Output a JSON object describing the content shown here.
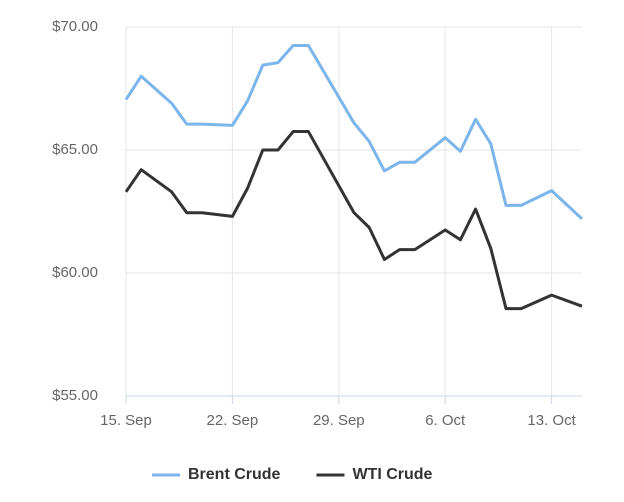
{
  "chart_data": {
    "type": "line",
    "x": [
      0,
      1,
      3,
      4,
      5,
      7,
      8,
      9,
      10,
      11,
      12,
      15,
      16,
      17,
      18,
      19,
      21,
      22,
      23,
      24,
      25,
      26,
      28,
      30
    ],
    "series": [
      {
        "name": "Brent Crude",
        "color": "#7cb5ec",
        "values": [
          67.05,
          68.0,
          66.9,
          66.05,
          66.05,
          66.0,
          67.0,
          68.45,
          68.55,
          69.25,
          69.25,
          66.1,
          65.35,
          64.15,
          64.5,
          64.5,
          65.5,
          64.95,
          66.25,
          65.25,
          62.75,
          62.75,
          63.35,
          62.2
        ]
      },
      {
        "name": "WTI Crude",
        "color": "#333333",
        "values": [
          63.3,
          64.2,
          63.3,
          62.45,
          62.45,
          62.3,
          63.45,
          65.0,
          65.0,
          65.75,
          65.75,
          62.45,
          61.85,
          60.55,
          60.95,
          60.95,
          61.75,
          61.35,
          62.6,
          61.0,
          58.55,
          58.55,
          59.1,
          58.65
        ]
      }
    ],
    "xlim": [
      0,
      30
    ],
    "xticks": [
      {
        "value": 0,
        "label": "15. Sep"
      },
      {
        "value": 7,
        "label": "22. Sep"
      },
      {
        "value": 14,
        "label": "29. Sep"
      },
      {
        "value": 21,
        "label": "6. Oct"
      },
      {
        "value": 28,
        "label": "13. Oct"
      }
    ],
    "ylim": [
      55,
      70
    ],
    "yticks": [
      {
        "value": 55,
        "label": "$55.00"
      },
      {
        "value": 60,
        "label": "$60.00"
      },
      {
        "value": 65,
        "label": "$65.00"
      },
      {
        "value": 70,
        "label": "$70.00"
      }
    ],
    "grid": true
  }
}
